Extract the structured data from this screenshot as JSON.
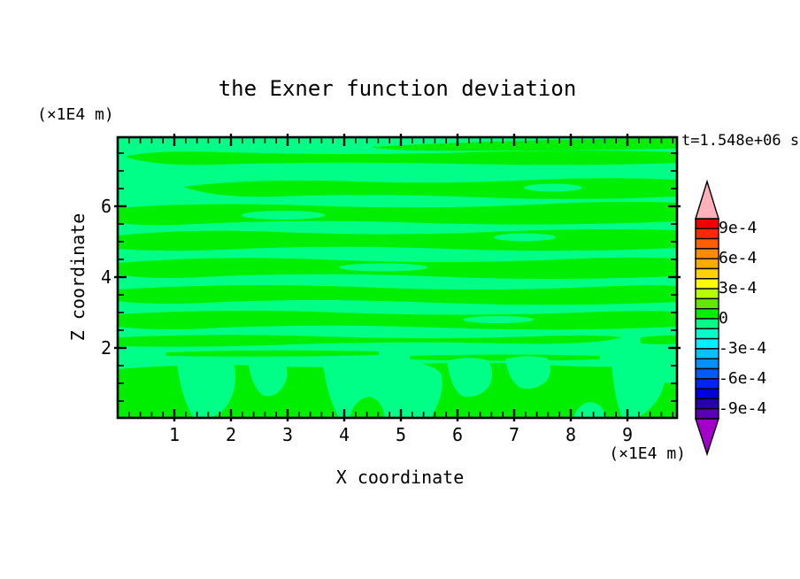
{
  "title": "the Exner function deviation",
  "time_label": "t=1.548e+06 s",
  "x_axis": {
    "label": "X coordinate",
    "unit_label": "(×1E4 m)",
    "tick_values": [
      1,
      2,
      3,
      4,
      5,
      6,
      7,
      8,
      9
    ],
    "tick_labels": [
      "1",
      "2",
      "3",
      "4",
      "5",
      "6",
      "7",
      "8",
      "9"
    ]
  },
  "y_axis": {
    "label": "Z coordinate",
    "unit_label": "(×1E4 m)",
    "tick_values": [
      2,
      4,
      6
    ],
    "tick_labels": [
      "2",
      "4",
      "6"
    ]
  },
  "field_colors": {
    "positive": "#00ee00",
    "negative": "#00ff87"
  },
  "colorbar": {
    "segment_colors": [
      "#f00000",
      "#ff2800",
      "#ff5f00",
      "#ff8c00",
      "#ffaa00",
      "#ffd200",
      "#ffff00",
      "#b4ff00",
      "#64e600",
      "#00ee00",
      "#00ff87",
      "#00ffc8",
      "#00f0ff",
      "#00c3ff",
      "#0091ff",
      "#005aff",
      "#0023ff",
      "#0000dc",
      "#2800aa",
      "#5a00b4"
    ],
    "top_arrow_color": "#ffb0b8",
    "bottom_arrow_color": "#a000c8",
    "tick_labels": [
      {
        "text": "9e-4",
        "boundary": 1
      },
      {
        "text": "6e-4",
        "boundary": 4
      },
      {
        "text": "3e-4",
        "boundary": 7
      },
      {
        "text": "0",
        "boundary": 10
      },
      {
        "text": "-3e-4",
        "boundary": 13
      },
      {
        "text": "-6e-4",
        "boundary": 16
      },
      {
        "text": "-9e-4",
        "boundary": 19
      }
    ]
  },
  "chart_data": {
    "type": "filled_contour",
    "title": "the Exner function deviation",
    "xlabel": "X coordinate",
    "ylabel": "Z coordinate",
    "axis_units": "×1E4 m",
    "x_range": [
      0,
      9.875
    ],
    "z_range": [
      0,
      7.95
    ],
    "x_major_ticks": [
      1,
      2,
      3,
      4,
      5,
      6,
      7,
      8,
      9
    ],
    "x_minor_step": 0.2,
    "z_major_ticks": [
      2,
      4,
      6
    ],
    "z_minor_step": 0.5,
    "time": "t=1.548e+06 s",
    "colorbar_levels": [
      "9e-4",
      "6e-4",
      "3e-4",
      "0",
      "-3e-4",
      "-6e-4",
      "-9e-4"
    ],
    "colorbar_range": [
      "-1e-3",
      "1e-3"
    ],
    "contour_interval": "1e-4",
    "field_value_range": [
      "-1e-4",
      "1e-4"
    ],
    "legend_position": "right",
    "grid": false,
    "regions": {
      "positive_paths": [
        "M286,11 Q420,3 632,1 L632,13 Q460,16 340,15 Q300,14 286,11 Z",
        "M8,22 Q40,14 120,17 Q260,21 400,17 Q540,13 632,17 L632,29 Q520,33 380,30 Q240,27 110,31 Q40,33 8,22 Z",
        "M74,56 Q150,46 270,50 Q360,53 450,49 Q550,44 632,48 L632,67 Q520,72 410,68 Q290,63 180,67 Q110,69 74,56 Z",
        "M0,80 Q90,73 210,77 Q350,82 470,76 Q570,71 632,74 L632,95 Q490,101 350,97 Q210,92 90,98 Q35,101 0,97 Z",
        "M0,111 Q80,103 180,107 Q300,112 420,107 Q540,102 632,105 L632,125 Q500,131 370,126 Q240,121 120,127 Q50,130 0,126 Z",
        "M0,142 Q110,133 230,138 Q370,144 500,138 Q580,134 632,137 L632,157 Q490,163 350,157 Q210,152 95,158 Q35,161 0,155 Z",
        "M0,172 Q130,164 270,169 Q410,175 540,169 Q600,166 632,168 L632,186 Q500,192 360,187 Q220,181 100,187 Q40,190 0,185 Z",
        "M0,200 Q120,193 250,198 Q390,203 520,198 Q590,195 632,197 L632,214 Q500,220 360,215 Q220,210 100,216 Q40,219 0,214 Z",
        "M0,226 Q110,221 230,225 Q350,229 470,225 Q540,222 570,226 Q540,235 440,233 Q320,230 200,234 Q90,238 0,236 Z",
        "M592,226 Q615,223 632,224 L632,233 Q612,235 592,233 Q588,229 592,226 Z",
        "M55,243 Q170,239 295,242 L295,246 Q170,249 55,247 Z",
        "M330,247 Q440,244 545,247 L545,251 Q440,254 330,251 Z",
        "M0,262 Q80,255 160,258 Q240,262 320,257 Q400,252 480,257 Q560,262 632,256 L632,317 L0,317 Z"
      ],
      "negative_lens_paths": [
        "M459,57 a33,4.5 0 1,0 66,0 a33,4.5 0 1,0 -66,0 Z",
        "M140,88 a47,5 0 1,0 94,0 a47,5 0 1,0 -94,0 Z",
        "M425,113 a35,4.5 0 1,0 70,0 a35,4.5 0 1,0 -70,0 Z",
        "M250,147 a50,4.5 0 1,0 100,0 a50,4.5 0 1,0 -100,0 Z",
        "M390,206 a40,4 0 1,0 80,0 a40,4 0 1,0 -80,0 Z",
        "M67,257 Q72,250 100,251 Q128,252 132,259 Q136,280 126,299 Q118,314 102,317 L86,317 Q73,298 67,257 Z",
        "M148,256 Q168,248 188,255 Q196,268 186,283 Q176,296 163,291 Q151,280 148,256 Z",
        "M232,255 Q280,246 322,252 Q362,257 366,269 Q370,289 354,317 L250,317 Q236,291 232,255 Z",
        "M372,253 Q394,246 418,252 Q427,264 420,281 Q409,295 391,293 Q377,287 372,253 Z",
        "M438,251 Q460,244 486,250 Q493,262 485,275 Q472,287 455,283 Q442,275 438,251 Z",
        "M515,317 Q520,301 534,299 Q549,301 552,317 Z",
        "M558,251 Q588,244 616,250 Q623,268 614,289 Q604,309 586,317 L570,317 Q560,291 558,251 Z",
        "M598,249 Q618,244 632,246 L632,277 Q616,280 606,270 Q598,260 598,249 Z"
      ],
      "positive_island_paths": [
        "M262,317 Q267,296 284,293 Q299,296 302,317 Z"
      ]
    }
  }
}
